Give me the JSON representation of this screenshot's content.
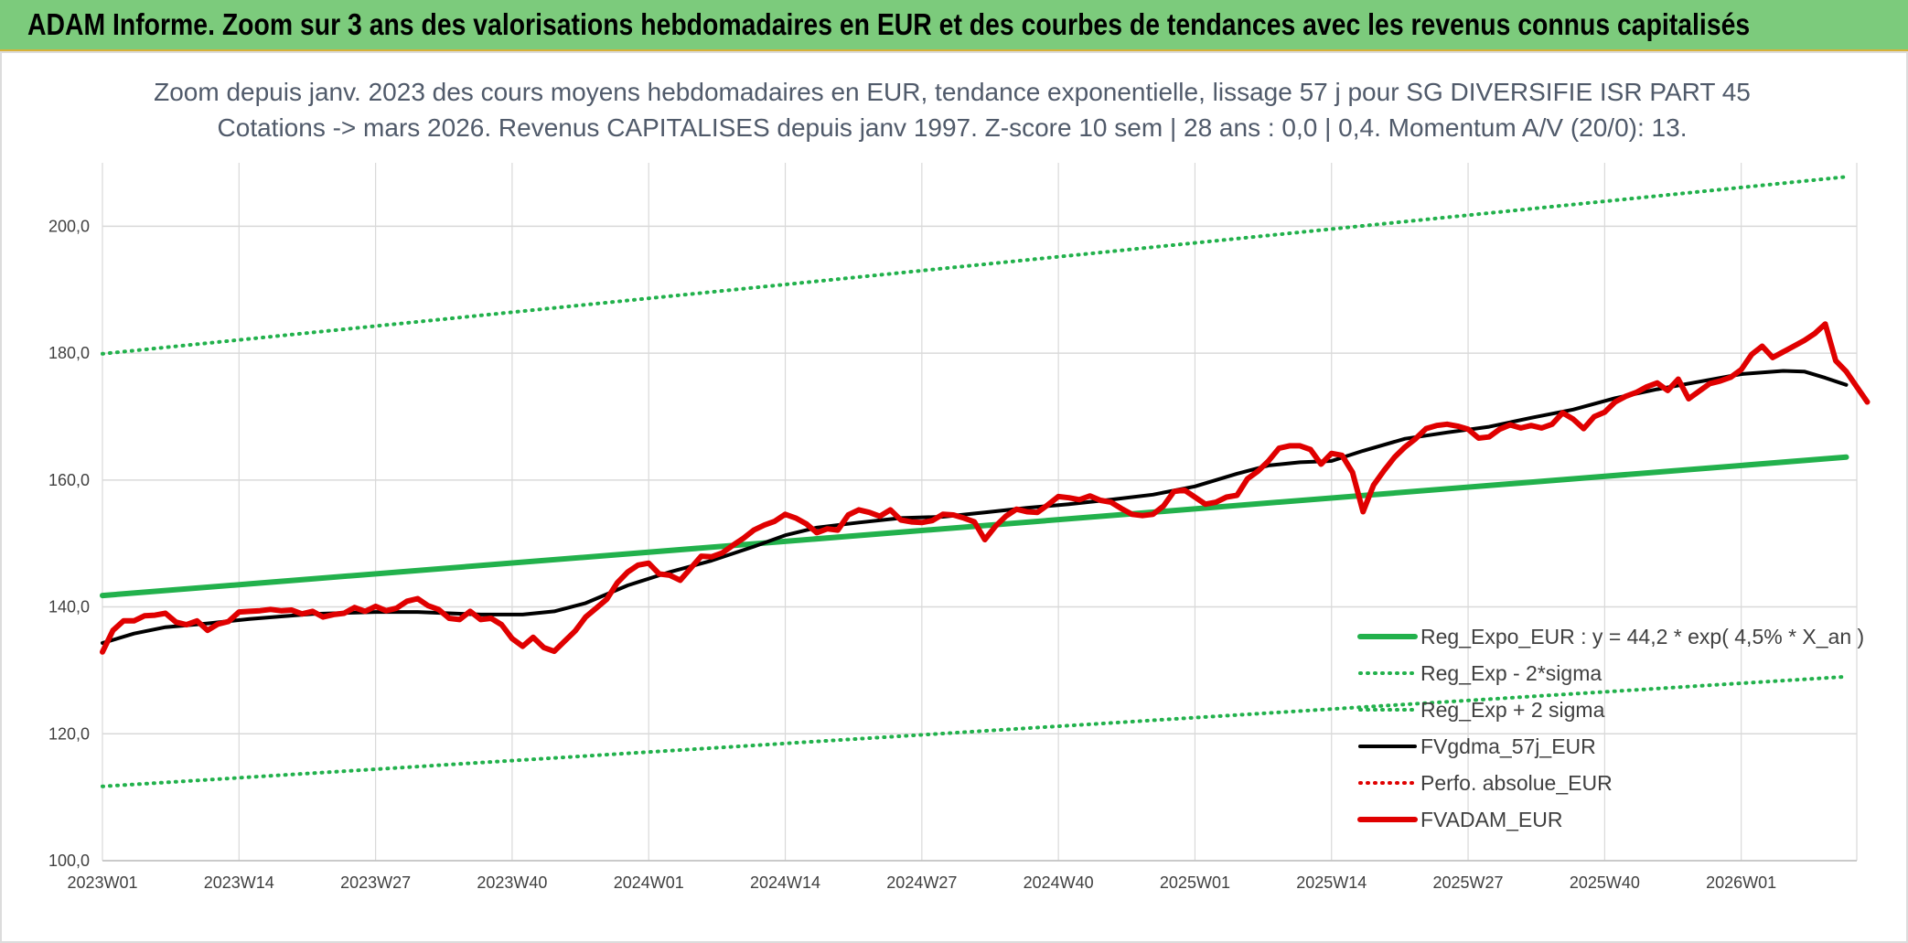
{
  "banner": {
    "title": "ADAM Informe. Zoom sur 3 ans des valorisations hebdomadaires en EUR et des courbes de tendances avec les revenus connus capitalisés"
  },
  "colors": {
    "banner_bg": "#7ccb7c",
    "trend_green": "#22b14c",
    "sigma_green": "#22b14c",
    "gdma_black": "#000000",
    "adam_red": "#e00000",
    "perfo_red": "#e00000",
    "grid": "#d9d9d9"
  },
  "chart_data": {
    "type": "line",
    "title_line1": "Zoom depuis janv. 2023 des cours moyens hebdomadaires en EUR, tendance exponentielle, lissage 57 j pour SG DIVERSIFIE ISR PART 45",
    "title_line2": "Cotations -> mars 2026. Revenus CAPITALISES depuis janv 1997. Z-score 10 sem | 28 ans : 0,0 | 0,4. Momentum A/V (20/0): 13.",
    "ylim": [
      100,
      210
    ],
    "yticks": [
      100,
      120,
      140,
      160,
      180,
      200
    ],
    "ytick_labels": [
      "100,0",
      "120,0",
      "140,0",
      "160,0",
      "180,0",
      "200,0"
    ],
    "x_range_weeks": [
      0,
      167
    ],
    "xticks": [
      0,
      13,
      26,
      39,
      52,
      65,
      78,
      91,
      104,
      117,
      130,
      143,
      156
    ],
    "xtick_labels": [
      "2023W01",
      "2023W14",
      "2023W27",
      "2023W40",
      "2024W01",
      "2024W14",
      "2024W27",
      "2024W40",
      "2025W01",
      "2025W14",
      "2025W27",
      "2025W40",
      "2026W01"
    ],
    "legend_position": "bottom-right",
    "series": [
      {
        "name": "Reg_Expo_EUR : y = 44,2 * exp( 4,5% *  X_an )",
        "style": "solid-thick",
        "color": "#22b14c",
        "points": [
          [
            0,
            141.8
          ],
          [
            166,
            163.6
          ]
        ]
      },
      {
        "name": "Reg_Exp - 2*sigma",
        "style": "dotted",
        "color": "#22b14c",
        "points": [
          [
            0,
            111.7
          ],
          [
            166,
            129.0
          ]
        ]
      },
      {
        "name": "Reg_Exp + 2 sigma",
        "style": "dotted",
        "color": "#22b14c",
        "points": [
          [
            0,
            179.9
          ],
          [
            166,
            207.8
          ]
        ]
      },
      {
        "name": "FVgdma_57j_EUR",
        "style": "solid",
        "color": "#000000",
        "points": [
          [
            0,
            134.3
          ],
          [
            3,
            135.8
          ],
          [
            6,
            136.8
          ],
          [
            10,
            137.4
          ],
          [
            14,
            138.1
          ],
          [
            20,
            138.9
          ],
          [
            26,
            139.2
          ],
          [
            30,
            139.2
          ],
          [
            36,
            138.8
          ],
          [
            40,
            138.8
          ],
          [
            43,
            139.3
          ],
          [
            46,
            140.6
          ],
          [
            50,
            143.4
          ],
          [
            54,
            145.5
          ],
          [
            58,
            147.3
          ],
          [
            62,
            149.5
          ],
          [
            65,
            151.3
          ],
          [
            68,
            152.5
          ],
          [
            72,
            153.3
          ],
          [
            76,
            154.0
          ],
          [
            80,
            154.2
          ],
          [
            84,
            154.9
          ],
          [
            88,
            155.6
          ],
          [
            92,
            156.2
          ],
          [
            96,
            156.9
          ],
          [
            100,
            157.7
          ],
          [
            104,
            159.0
          ],
          [
            108,
            161.0
          ],
          [
            111,
            162.3
          ],
          [
            114,
            162.8
          ],
          [
            117,
            163.0
          ],
          [
            120,
            164.6
          ],
          [
            124,
            166.5
          ],
          [
            128,
            167.5
          ],
          [
            132,
            168.4
          ],
          [
            136,
            169.8
          ],
          [
            140,
            171.1
          ],
          [
            144,
            172.9
          ],
          [
            148,
            174.3
          ],
          [
            152,
            175.5
          ],
          [
            156,
            176.7
          ],
          [
            160,
            177.2
          ],
          [
            162,
            177.1
          ],
          [
            164,
            176.1
          ],
          [
            166,
            175.0
          ]
        ]
      },
      {
        "name": "Perfo. absolue_EUR",
        "style": "dotted",
        "color": "#e00000",
        "points": []
      },
      {
        "name": "FVADAM_EUR",
        "style": "solid-thick",
        "color": "#e00000",
        "points": [
          [
            0,
            132.9
          ],
          [
            1,
            136.3
          ],
          [
            2,
            137.8
          ],
          [
            3,
            137.8
          ],
          [
            4,
            138.6
          ],
          [
            5,
            138.7
          ],
          [
            6,
            139.0
          ],
          [
            7,
            137.6
          ],
          [
            8,
            137.2
          ],
          [
            9,
            137.8
          ],
          [
            10,
            136.3
          ],
          [
            11,
            137.3
          ],
          [
            12,
            137.7
          ],
          [
            13,
            139.2
          ],
          [
            14,
            139.3
          ],
          [
            15,
            139.4
          ],
          [
            16,
            139.6
          ],
          [
            17,
            139.4
          ],
          [
            18,
            139.5
          ],
          [
            19,
            138.9
          ],
          [
            20,
            139.3
          ],
          [
            21,
            138.4
          ],
          [
            22,
            138.8
          ],
          [
            23,
            139.0
          ],
          [
            24,
            139.9
          ],
          [
            25,
            139.3
          ],
          [
            26,
            140.1
          ],
          [
            27,
            139.4
          ],
          [
            28,
            139.8
          ],
          [
            29,
            140.9
          ],
          [
            30,
            141.3
          ],
          [
            31,
            140.2
          ],
          [
            32,
            139.6
          ],
          [
            33,
            138.2
          ],
          [
            34,
            138.0
          ],
          [
            35,
            139.3
          ],
          [
            36,
            138.0
          ],
          [
            37,
            138.2
          ],
          [
            38,
            137.2
          ],
          [
            39,
            135.0
          ],
          [
            40,
            133.8
          ],
          [
            41,
            135.2
          ],
          [
            42,
            133.6
          ],
          [
            43,
            133.0
          ],
          [
            44,
            134.6
          ],
          [
            45,
            136.2
          ],
          [
            46,
            138.4
          ],
          [
            47,
            139.8
          ],
          [
            48,
            141.2
          ],
          [
            49,
            143.8
          ],
          [
            50,
            145.5
          ],
          [
            51,
            146.6
          ],
          [
            52,
            146.9
          ],
          [
            53,
            145.2
          ],
          [
            54,
            145.0
          ],
          [
            55,
            144.2
          ],
          [
            56,
            146.1
          ],
          [
            57,
            148.0
          ],
          [
            58,
            147.9
          ],
          [
            59,
            148.5
          ],
          [
            60,
            149.7
          ],
          [
            61,
            150.8
          ],
          [
            62,
            152.1
          ],
          [
            63,
            152.9
          ],
          [
            64,
            153.5
          ],
          [
            65,
            154.6
          ],
          [
            66,
            154.0
          ],
          [
            67,
            153.1
          ],
          [
            68,
            151.7
          ],
          [
            69,
            152.3
          ],
          [
            70,
            152.1
          ],
          [
            71,
            154.5
          ],
          [
            72,
            155.3
          ],
          [
            73,
            154.9
          ],
          [
            74,
            154.3
          ],
          [
            75,
            155.3
          ],
          [
            76,
            153.7
          ],
          [
            77,
            153.4
          ],
          [
            78,
            153.3
          ],
          [
            79,
            153.6
          ],
          [
            80,
            154.6
          ],
          [
            81,
            154.5
          ],
          [
            82,
            154.0
          ],
          [
            83,
            153.4
          ],
          [
            84,
            150.6
          ],
          [
            85,
            152.7
          ],
          [
            86,
            154.3
          ],
          [
            87,
            155.4
          ],
          [
            88,
            155.0
          ],
          [
            89,
            154.9
          ],
          [
            90,
            156.1
          ],
          [
            91,
            157.4
          ],
          [
            92,
            157.2
          ],
          [
            93,
            156.9
          ],
          [
            94,
            157.5
          ],
          [
            95,
            156.8
          ],
          [
            96,
            156.5
          ],
          [
            97,
            155.5
          ],
          [
            98,
            154.6
          ],
          [
            99,
            154.4
          ],
          [
            100,
            154.6
          ],
          [
            101,
            155.9
          ],
          [
            102,
            158.2
          ],
          [
            103,
            158.4
          ],
          [
            104,
            157.3
          ],
          [
            105,
            156.2
          ],
          [
            106,
            156.5
          ],
          [
            107,
            157.3
          ],
          [
            108,
            157.6
          ],
          [
            109,
            160.2
          ],
          [
            110,
            161.4
          ],
          [
            111,
            163.0
          ],
          [
            112,
            165.0
          ],
          [
            113,
            165.4
          ],
          [
            114,
            165.4
          ],
          [
            115,
            164.8
          ],
          [
            116,
            162.5
          ],
          [
            117,
            164.2
          ],
          [
            118,
            163.9
          ],
          [
            119,
            161.2
          ],
          [
            120,
            155.0
          ],
          [
            121,
            159.2
          ],
          [
            122,
            161.5
          ],
          [
            123,
            163.6
          ],
          [
            124,
            165.2
          ],
          [
            125,
            166.5
          ],
          [
            126,
            168.1
          ],
          [
            127,
            168.6
          ],
          [
            128,
            168.8
          ],
          [
            129,
            168.5
          ],
          [
            130,
            168.0
          ],
          [
            131,
            166.6
          ],
          [
            132,
            166.8
          ],
          [
            133,
            168.0
          ],
          [
            134,
            168.7
          ],
          [
            135,
            168.2
          ],
          [
            136,
            168.6
          ],
          [
            137,
            168.2
          ],
          [
            138,
            168.8
          ],
          [
            139,
            170.6
          ],
          [
            140,
            169.6
          ],
          [
            141,
            168.1
          ],
          [
            142,
            170.0
          ],
          [
            143,
            170.7
          ],
          [
            144,
            172.3
          ],
          [
            145,
            173.2
          ],
          [
            146,
            173.8
          ],
          [
            147,
            174.7
          ],
          [
            148,
            175.3
          ],
          [
            149,
            174.1
          ],
          [
            150,
            175.9
          ],
          [
            151,
            172.8
          ],
          [
            152,
            174.0
          ],
          [
            153,
            175.2
          ],
          [
            154,
            175.6
          ],
          [
            155,
            176.2
          ],
          [
            156,
            177.4
          ],
          [
            157,
            179.8
          ],
          [
            158,
            181.1
          ],
          [
            159,
            179.3
          ],
          [
            160,
            180.2
          ],
          [
            161,
            181.1
          ],
          [
            162,
            182.0
          ],
          [
            163,
            183.1
          ],
          [
            164,
            184.6
          ],
          [
            165,
            178.8
          ],
          [
            166,
            177.1
          ],
          [
            167,
            174.7
          ],
          [
            168,
            172.3
          ]
        ]
      }
    ]
  }
}
